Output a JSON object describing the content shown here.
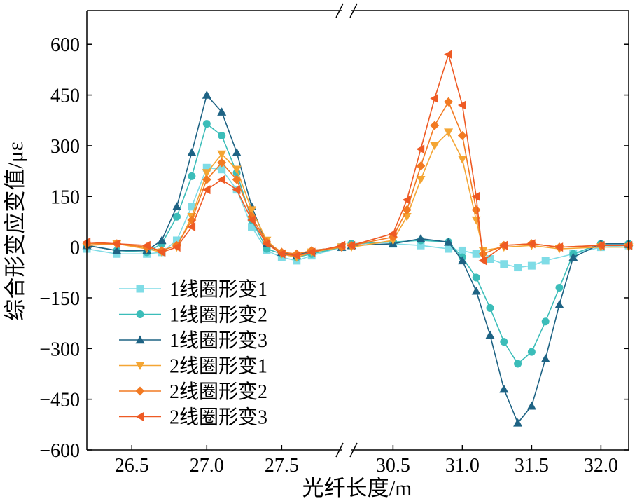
{
  "chart_data": {
    "type": "line",
    "xlabel": "光纤长度/m",
    "ylabel": "综合形变应变值/με",
    "ylim": [
      -600,
      700
    ],
    "yticks": [
      600,
      450,
      300,
      150,
      0,
      -150,
      -300,
      -450,
      -600
    ],
    "ytick_labels": [
      "600",
      "450",
      "300",
      "150",
      "0",
      "−150",
      "−300",
      "−450",
      "−600"
    ],
    "axis_break": true,
    "segments": [
      {
        "xlim": [
          26.2,
          27.9
        ],
        "xticks": [
          26.5,
          27.0,
          27.5
        ],
        "xtick_labels": [
          "26.5",
          "27.0",
          "27.5"
        ]
      },
      {
        "xlim": [
          30.2,
          32.2
        ],
        "xticks": [
          30.5,
          31.0,
          31.5,
          32.0
        ],
        "xtick_labels": [
          "30.5",
          "31.0",
          "31.5",
          "32.0"
        ]
      }
    ],
    "legend_position": "bottom-left",
    "series": [
      {
        "name": "1线圈形变1",
        "color": "#7fdce6",
        "marker": "square",
        "left": [
          [
            26.2,
            -5
          ],
          [
            26.4,
            -20
          ],
          [
            26.6,
            -20
          ],
          [
            26.7,
            -15
          ],
          [
            26.8,
            20
          ],
          [
            26.9,
            120
          ],
          [
            27.0,
            235
          ],
          [
            27.1,
            230
          ],
          [
            27.2,
            170
          ],
          [
            27.3,
            60
          ],
          [
            27.4,
            -10
          ],
          [
            27.5,
            -30
          ],
          [
            27.6,
            -40
          ],
          [
            27.7,
            -25
          ],
          [
            27.9,
            0
          ]
        ],
        "right": [
          [
            30.2,
            5
          ],
          [
            30.5,
            10
          ],
          [
            30.7,
            5
          ],
          [
            30.9,
            -5
          ],
          [
            31.0,
            -10
          ],
          [
            31.1,
            -20
          ],
          [
            31.2,
            -35
          ],
          [
            31.3,
            -50
          ],
          [
            31.4,
            -60
          ],
          [
            31.5,
            -55
          ],
          [
            31.6,
            -40
          ],
          [
            31.8,
            -20
          ],
          [
            32.0,
            0
          ],
          [
            32.2,
            5
          ]
        ]
      },
      {
        "name": "1线圈形变2",
        "color": "#3bbdb9",
        "marker": "circle",
        "left": [
          [
            26.2,
            5
          ],
          [
            26.4,
            -10
          ],
          [
            26.6,
            -15
          ],
          [
            26.7,
            10
          ],
          [
            26.8,
            90
          ],
          [
            26.9,
            210
          ],
          [
            27.0,
            365
          ],
          [
            27.1,
            330
          ],
          [
            27.2,
            220
          ],
          [
            27.3,
            80
          ],
          [
            27.4,
            -5
          ],
          [
            27.5,
            -20
          ],
          [
            27.6,
            -30
          ],
          [
            27.7,
            -20
          ],
          [
            27.9,
            0
          ]
        ],
        "right": [
          [
            30.2,
            10
          ],
          [
            30.5,
            15
          ],
          [
            30.7,
            20
          ],
          [
            30.9,
            15
          ],
          [
            31.0,
            -30
          ],
          [
            31.1,
            -90
          ],
          [
            31.2,
            -180
          ],
          [
            31.3,
            -280
          ],
          [
            31.4,
            -345
          ],
          [
            31.5,
            -310
          ],
          [
            31.6,
            -220
          ],
          [
            31.7,
            -120
          ],
          [
            31.8,
            -20
          ],
          [
            32.0,
            10
          ],
          [
            32.2,
            10
          ]
        ]
      },
      {
        "name": "1线圈形变3",
        "color": "#1e6384",
        "marker": "triangle-up",
        "left": [
          [
            26.2,
            5
          ],
          [
            26.4,
            -10
          ],
          [
            26.6,
            -10
          ],
          [
            26.7,
            20
          ],
          [
            26.8,
            120
          ],
          [
            26.9,
            280
          ],
          [
            27.0,
            450
          ],
          [
            27.1,
            400
          ],
          [
            27.2,
            280
          ],
          [
            27.3,
            120
          ],
          [
            27.4,
            10
          ],
          [
            27.5,
            -15
          ],
          [
            27.6,
            -25
          ],
          [
            27.7,
            -10
          ],
          [
            27.9,
            0
          ]
        ],
        "right": [
          [
            30.2,
            5
          ],
          [
            30.5,
            10
          ],
          [
            30.7,
            25
          ],
          [
            30.9,
            15
          ],
          [
            31.0,
            -40
          ],
          [
            31.1,
            -130
          ],
          [
            31.2,
            -260
          ],
          [
            31.3,
            -420
          ],
          [
            31.4,
            -520
          ],
          [
            31.5,
            -470
          ],
          [
            31.6,
            -330
          ],
          [
            31.7,
            -170
          ],
          [
            31.8,
            -30
          ],
          [
            32.0,
            10
          ],
          [
            32.2,
            10
          ]
        ]
      },
      {
        "name": "2线圈形变1",
        "color": "#f4a533",
        "marker": "triangle-down",
        "left": [
          [
            26.2,
            5
          ],
          [
            26.4,
            10
          ],
          [
            26.6,
            -5
          ],
          [
            26.7,
            -15
          ],
          [
            26.8,
            0
          ],
          [
            26.9,
            90
          ],
          [
            27.0,
            220
          ],
          [
            27.1,
            275
          ],
          [
            27.2,
            230
          ],
          [
            27.3,
            110
          ],
          [
            27.4,
            20
          ],
          [
            27.5,
            -20
          ],
          [
            27.6,
            -30
          ],
          [
            27.7,
            -15
          ],
          [
            27.9,
            0
          ]
        ],
        "right": [
          [
            30.2,
            0
          ],
          [
            30.5,
            20
          ],
          [
            30.6,
            90
          ],
          [
            30.7,
            200
          ],
          [
            30.8,
            300
          ],
          [
            30.9,
            340
          ],
          [
            31.0,
            260
          ],
          [
            31.1,
            80
          ],
          [
            31.15,
            -10
          ],
          [
            31.3,
            0
          ],
          [
            31.5,
            5
          ],
          [
            31.7,
            -5
          ],
          [
            32.0,
            0
          ],
          [
            32.2,
            0
          ]
        ]
      },
      {
        "name": "2线圈形变2",
        "color": "#f27a22",
        "marker": "diamond",
        "left": [
          [
            26.2,
            10
          ],
          [
            26.4,
            10
          ],
          [
            26.6,
            0
          ],
          [
            26.7,
            -10
          ],
          [
            26.8,
            5
          ],
          [
            26.9,
            80
          ],
          [
            27.0,
            200
          ],
          [
            27.1,
            250
          ],
          [
            27.2,
            200
          ],
          [
            27.3,
            90
          ],
          [
            27.4,
            15
          ],
          [
            27.5,
            -15
          ],
          [
            27.6,
            -20
          ],
          [
            27.7,
            -10
          ],
          [
            27.9,
            0
          ]
        ],
        "right": [
          [
            30.2,
            5
          ],
          [
            30.5,
            30
          ],
          [
            30.6,
            110
          ],
          [
            30.7,
            240
          ],
          [
            30.8,
            360
          ],
          [
            30.9,
            430
          ],
          [
            31.0,
            330
          ],
          [
            31.1,
            110
          ],
          [
            31.15,
            -20
          ],
          [
            31.3,
            5
          ],
          [
            31.5,
            10
          ],
          [
            31.7,
            0
          ],
          [
            32.0,
            5
          ],
          [
            32.2,
            5
          ]
        ]
      },
      {
        "name": "2线圈形变3",
        "color": "#ee5a24",
        "marker": "triangle-left",
        "left": [
          [
            26.2,
            15
          ],
          [
            26.4,
            10
          ],
          [
            26.6,
            5
          ],
          [
            26.7,
            -15
          ],
          [
            26.8,
            0
          ],
          [
            26.9,
            60
          ],
          [
            27.0,
            170
          ],
          [
            27.1,
            200
          ],
          [
            27.2,
            170
          ],
          [
            27.3,
            80
          ],
          [
            27.4,
            10
          ],
          [
            27.5,
            -20
          ],
          [
            27.6,
            -25
          ],
          [
            27.7,
            -15
          ],
          [
            27.9,
            5
          ]
        ],
        "right": [
          [
            30.2,
            5
          ],
          [
            30.5,
            40
          ],
          [
            30.6,
            140
          ],
          [
            30.7,
            290
          ],
          [
            30.8,
            440
          ],
          [
            30.9,
            570
          ],
          [
            31.0,
            420
          ],
          [
            31.1,
            150
          ],
          [
            31.15,
            -40
          ],
          [
            31.3,
            5
          ],
          [
            31.5,
            10
          ],
          [
            31.7,
            0
          ],
          [
            32.0,
            5
          ],
          [
            32.2,
            5
          ]
        ]
      }
    ]
  }
}
